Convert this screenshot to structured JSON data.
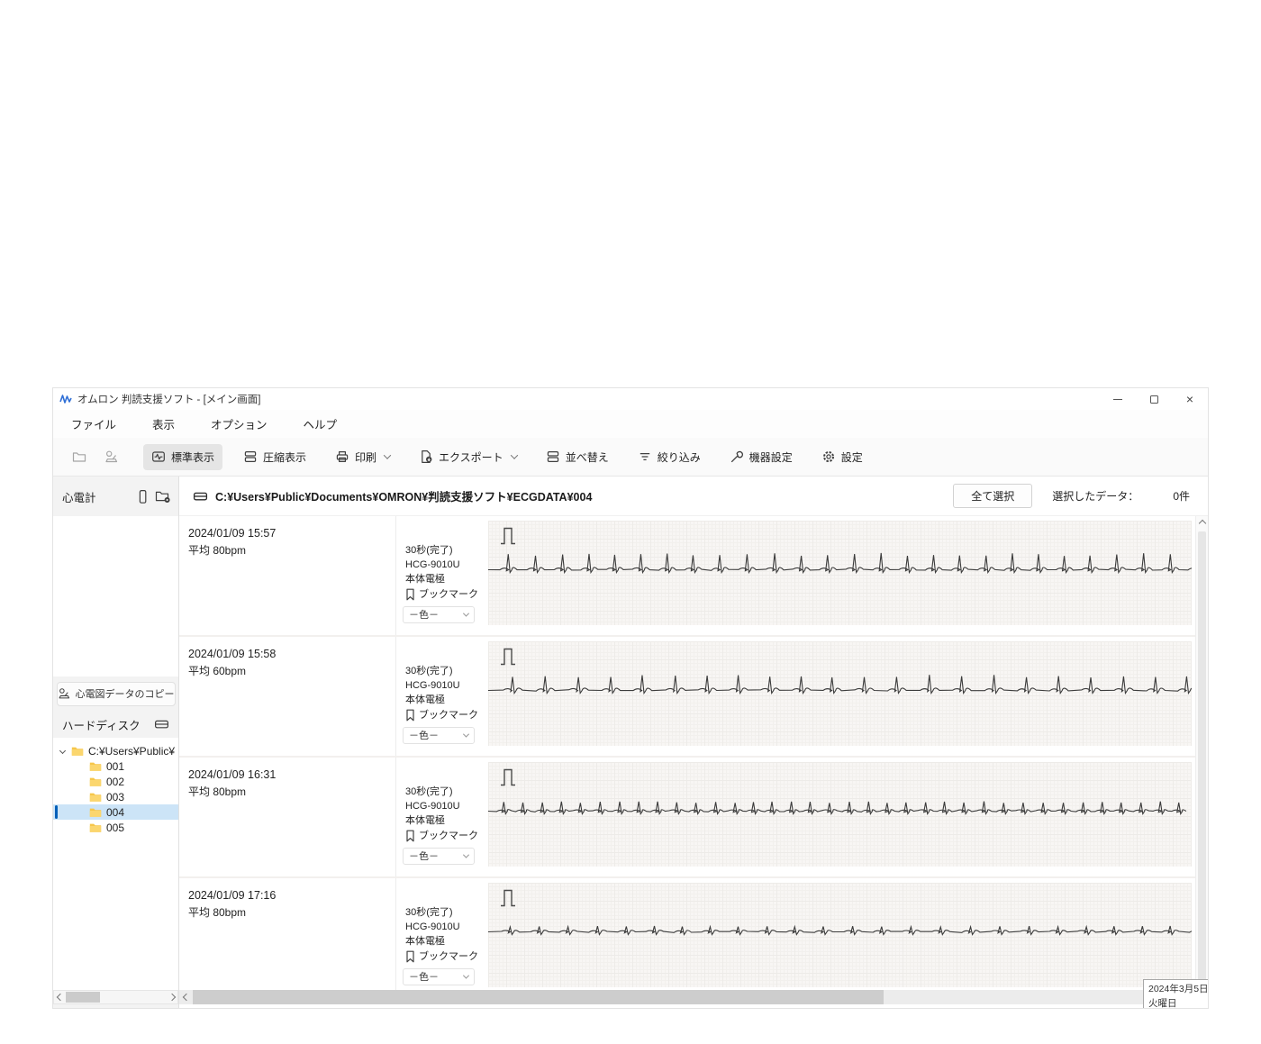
{
  "window": {
    "title": "オムロン 判読支援ソフト - [メイン画面]"
  },
  "menu": {
    "items": [
      "ファイル",
      "表示",
      "オプション",
      "ヘルプ"
    ]
  },
  "toolbar": {
    "buttons": [
      {
        "label": "標準表示",
        "icon": "waveform-view-icon",
        "selected": true,
        "dropdown": false
      },
      {
        "label": "圧縮表示",
        "icon": "compressed-view-icon",
        "selected": false,
        "dropdown": false
      },
      {
        "label": "印刷",
        "icon": "print-icon",
        "selected": false,
        "dropdown": true
      },
      {
        "label": "エクスポート",
        "icon": "export-icon",
        "selected": false,
        "dropdown": true
      },
      {
        "label": "並べ替え",
        "icon": "sort-icon",
        "selected": false,
        "dropdown": false
      },
      {
        "label": "絞り込み",
        "icon": "filter-icon",
        "selected": false,
        "dropdown": false
      },
      {
        "label": "機器設定",
        "icon": "wrench-icon",
        "selected": false,
        "dropdown": false
      },
      {
        "label": "設定",
        "icon": "gear-icon",
        "selected": false,
        "dropdown": false
      }
    ]
  },
  "sidebar": {
    "ecg_device_label": "心電計",
    "copy_button_label": "心電図データのコピー",
    "hdd_label": "ハードディスク",
    "tree": {
      "root_label": "C:¥Users¥Public¥",
      "items": [
        "001",
        "002",
        "003",
        "004",
        "005"
      ],
      "selected_index": 3
    }
  },
  "pathbar": {
    "path": "C:¥Users¥Public¥Documents¥OMRON¥判読支援ソフト¥ECGDATA¥004",
    "select_all_label": "全て選択",
    "selected_label": "選択したデータ：",
    "selected_count": "0件"
  },
  "records": [
    {
      "datetime": "2024/01/09 15:57",
      "avg": "平均 80bpm",
      "duration": "30秒(完了)",
      "device": "HCG-9010U",
      "electrode": "本体電極",
      "bookmark_label": "ブックマーク",
      "color_label": "－色－",
      "wave": {
        "spacing": 29,
        "r": 17,
        "p": 1.7,
        "t": 2.3,
        "seed": 11
      }
    },
    {
      "datetime": "2024/01/09 15:58",
      "avg": "平均 60bpm",
      "duration": "30秒(完了)",
      "device": "HCG-9010U",
      "electrode": "本体電極",
      "bookmark_label": "ブックマーク",
      "color_label": "－色－",
      "wave": {
        "spacing": 36,
        "r": 16,
        "p": 1.7,
        "t": 2.3,
        "seed": 22
      }
    },
    {
      "datetime": "2024/01/09 16:31",
      "avg": "平均 80bpm",
      "duration": "30秒(完了)",
      "device": "HCG-9010U",
      "electrode": "本体電極",
      "bookmark_label": "ブックマーク",
      "color_label": "－色－",
      "wave": {
        "spacing": 21,
        "r": 10,
        "p": 1.2,
        "t": 1.5,
        "seed": 33
      }
    },
    {
      "datetime": "2024/01/09 17:16",
      "avg": "平均 80bpm",
      "duration": "30秒(完了)",
      "device": "HCG-9010U",
      "electrode": "本体電極",
      "bookmark_label": "ブックマーク",
      "color_label": "－色－",
      "wave": {
        "spacing": 31,
        "r": 6,
        "p": 1.3,
        "t": 1.6,
        "seed": 44
      }
    }
  ],
  "statusbar": {
    "date": "2024年3月5日",
    "weekday": "火曜日"
  },
  "colors": {
    "accent": "#005fb8",
    "selection_bg": "#cce4f7",
    "trace": "#3c3c3c",
    "grid_bg": "#f8f6f4",
    "logo_blue": "#2f6fd6"
  }
}
